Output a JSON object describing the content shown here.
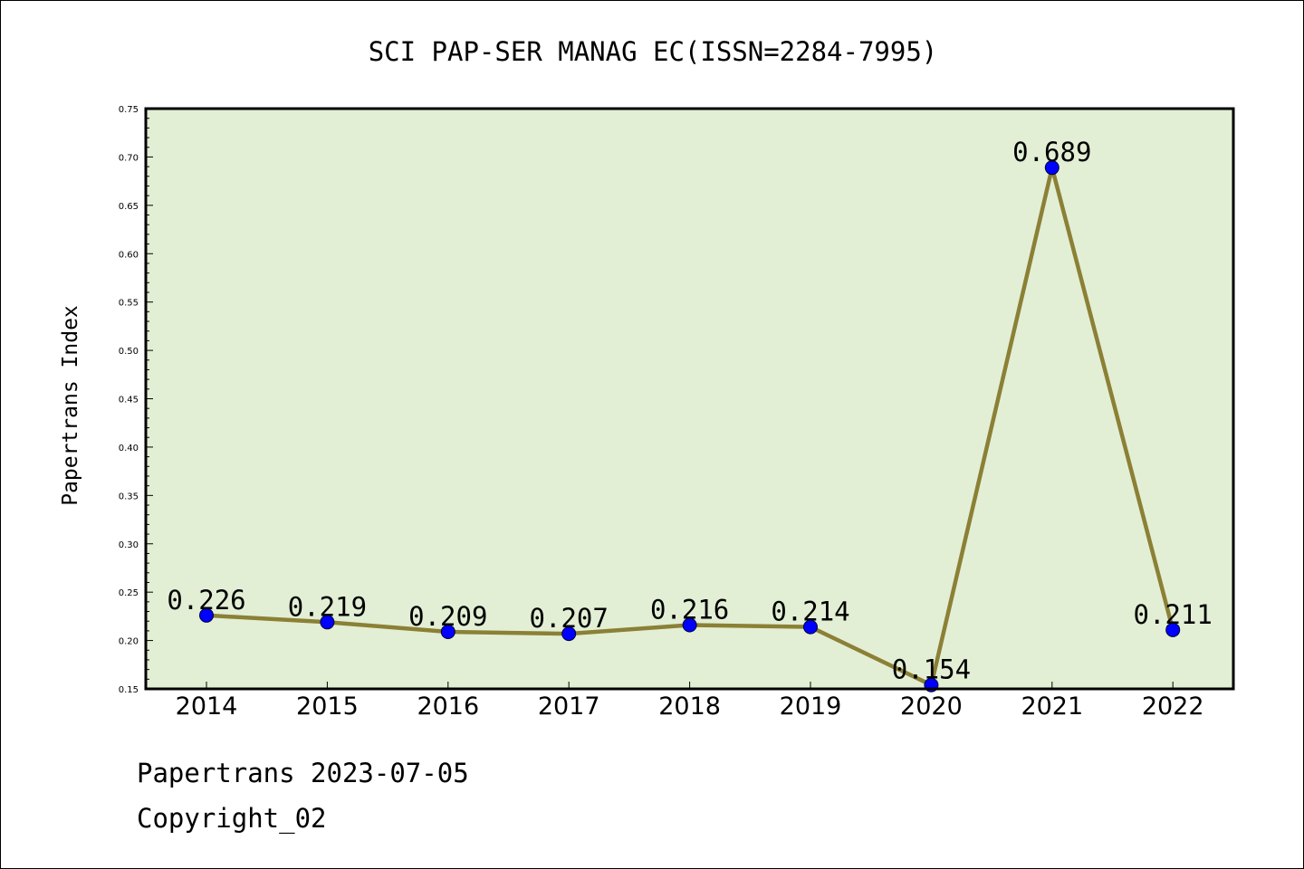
{
  "chart_data": {
    "type": "line",
    "title": "SCI PAP-SER MANAG EC(ISSN=2284-7995)",
    "xlabel": "",
    "ylabel": "Papertrans Index",
    "categories": [
      "2014",
      "2015",
      "2016",
      "2017",
      "2018",
      "2019",
      "2020",
      "2021",
      "2022"
    ],
    "series": [
      {
        "values": [
          0.226,
          0.219,
          0.209,
          0.207,
          0.216,
          0.214,
          0.154,
          0.689,
          0.211
        ]
      }
    ],
    "data_labels": [
      "0.226",
      "0.219",
      "0.209",
      "0.207",
      "0.216",
      "0.214",
      "0.154",
      "0.689",
      "0.211"
    ],
    "ylim": [
      0.15,
      0.75
    ],
    "yticks": [
      0.15,
      0.2,
      0.25,
      0.3,
      0.35,
      0.4,
      0.45,
      0.5,
      0.55,
      0.6,
      0.65,
      0.7,
      0.75
    ],
    "ytick_labels": [
      "0.15",
      "0.20",
      "0.25",
      "0.30",
      "0.35",
      "0.40",
      "0.45",
      "0.50",
      "0.55",
      "0.60",
      "0.65",
      "0.70",
      "0.75"
    ],
    "grid": false,
    "colors": {
      "plot_background": "#e2efd5",
      "line": "#8b8035",
      "marker": "#0000ff",
      "frame": "#000000"
    }
  },
  "footer": {
    "line1": "Papertrans 2023-07-05",
    "line2": "Copyright_02"
  }
}
